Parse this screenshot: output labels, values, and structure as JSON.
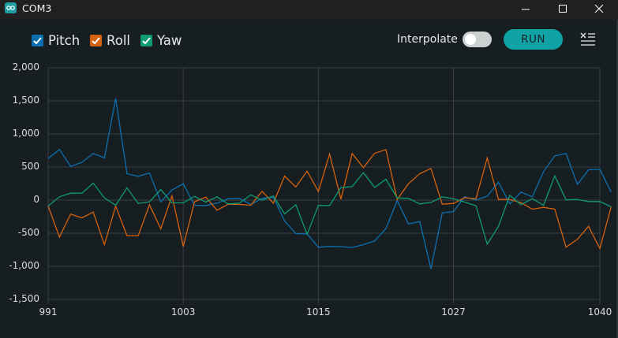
{
  "window": {
    "title": "COM3",
    "controls": [
      "minimize",
      "maximize",
      "close"
    ]
  },
  "toolbar": {
    "legend": [
      {
        "label": "Pitch",
        "color": "#0c6fb0",
        "checked": true
      },
      {
        "label": "Roll",
        "color": "#d4620e",
        "checked": true
      },
      {
        "label": "Yaw",
        "color": "#0f9a73",
        "checked": true
      }
    ],
    "interpolate_label": "Interpolate",
    "interpolate_on": false,
    "run_label": "RUN",
    "clear_icon": "clear-list-icon"
  },
  "chart_data": {
    "type": "line",
    "title": "",
    "xlabel": "",
    "ylabel": "",
    "x_start": 991,
    "x_end": 1040,
    "x_ticks": [
      "991",
      "1003",
      "1015",
      "1027",
      "1040"
    ],
    "y_ticks": [
      "2,000",
      "1,500",
      "1,000",
      "500",
      "0",
      "-500",
      "-1,000",
      "-1,500"
    ],
    "ylim": [
      -1500,
      2000
    ],
    "grid": true,
    "legend_position": "top-left",
    "series": [
      {
        "name": "Pitch",
        "color": "#0c6fb0",
        "values": [
          629,
          765,
          510,
          570,
          705,
          637,
          1538,
          399,
          360,
          411,
          -26,
          152,
          248,
          -77,
          -81,
          -45,
          21,
          26,
          -65,
          26,
          42,
          -315,
          -506,
          -510,
          -712,
          -700,
          -704,
          -716,
          -673,
          -617,
          -431,
          -6,
          -359,
          -324,
          -1038,
          -193,
          -173,
          51,
          0,
          60,
          271,
          -57,
          121,
          50,
          431,
          669,
          705,
          236,
          458,
          466,
          121
        ]
      },
      {
        "name": "Roll",
        "color": "#d4620e",
        "values": [
          -89,
          -557,
          -212,
          -268,
          -181,
          -673,
          -89,
          -538,
          -538,
          -69,
          -435,
          65,
          -700,
          -26,
          45,
          -152,
          -62,
          -65,
          -77,
          133,
          -45,
          363,
          200,
          438,
          129,
          696,
          14,
          705,
          490,
          708,
          764,
          10,
          248,
          399,
          478,
          -62,
          -50,
          37,
          22,
          637,
          10,
          10,
          -38,
          -137,
          -109,
          -137,
          -712,
          -593,
          -395,
          -732,
          -101
        ]
      },
      {
        "name": "Yaw",
        "color": "#0f9a73",
        "values": [
          -89,
          50,
          105,
          105,
          256,
          33,
          -77,
          185,
          -50,
          -26,
          161,
          -42,
          -42,
          57,
          -30,
          50,
          -57,
          -45,
          81,
          -2,
          65,
          -208,
          -69,
          -514,
          -81,
          -81,
          188,
          205,
          414,
          193,
          315,
          33,
          26,
          -57,
          -34,
          50,
          22,
          -30,
          -86,
          -665,
          -395,
          73,
          -69,
          22,
          -77,
          367,
          4,
          10,
          -22,
          -22,
          -101
        ]
      }
    ]
  }
}
